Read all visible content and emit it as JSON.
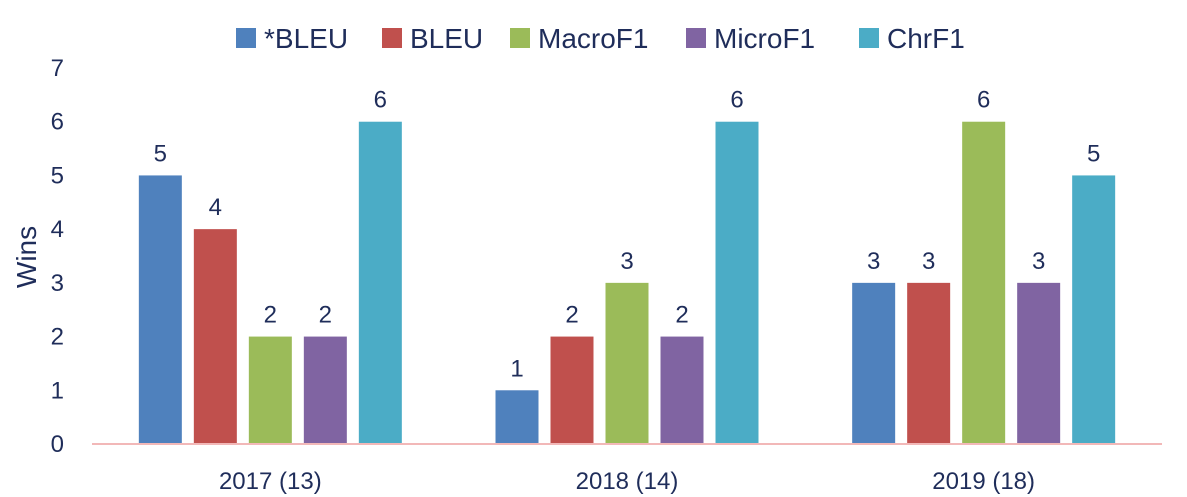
{
  "chart_data": {
    "type": "bar",
    "title": "",
    "xlabel": "",
    "ylabel": "Wins",
    "ylim": [
      0,
      7
    ],
    "yticks": [
      0,
      1,
      2,
      3,
      4,
      5,
      6,
      7
    ],
    "grid": false,
    "legend_position": "top",
    "categories": [
      "2017 (13)",
      "2018 (14)",
      "2019 (18)"
    ],
    "series": [
      {
        "name": "*BLEU",
        "color": "#4f81bd",
        "values": [
          5,
          1,
          3
        ]
      },
      {
        "name": "BLEU",
        "color": "#c0504d",
        "values": [
          4,
          2,
          3
        ]
      },
      {
        "name": "MacroF1",
        "color": "#9bbb59",
        "values": [
          2,
          3,
          6
        ]
      },
      {
        "name": "MicroF1",
        "color": "#8064a2",
        "values": [
          2,
          2,
          3
        ]
      },
      {
        "name": "ChrF1",
        "color": "#4bacc6",
        "values": [
          6,
          6,
          5
        ]
      }
    ],
    "axis_line_color": "#f2b8b8",
    "text_color": "#1f2d5a"
  }
}
